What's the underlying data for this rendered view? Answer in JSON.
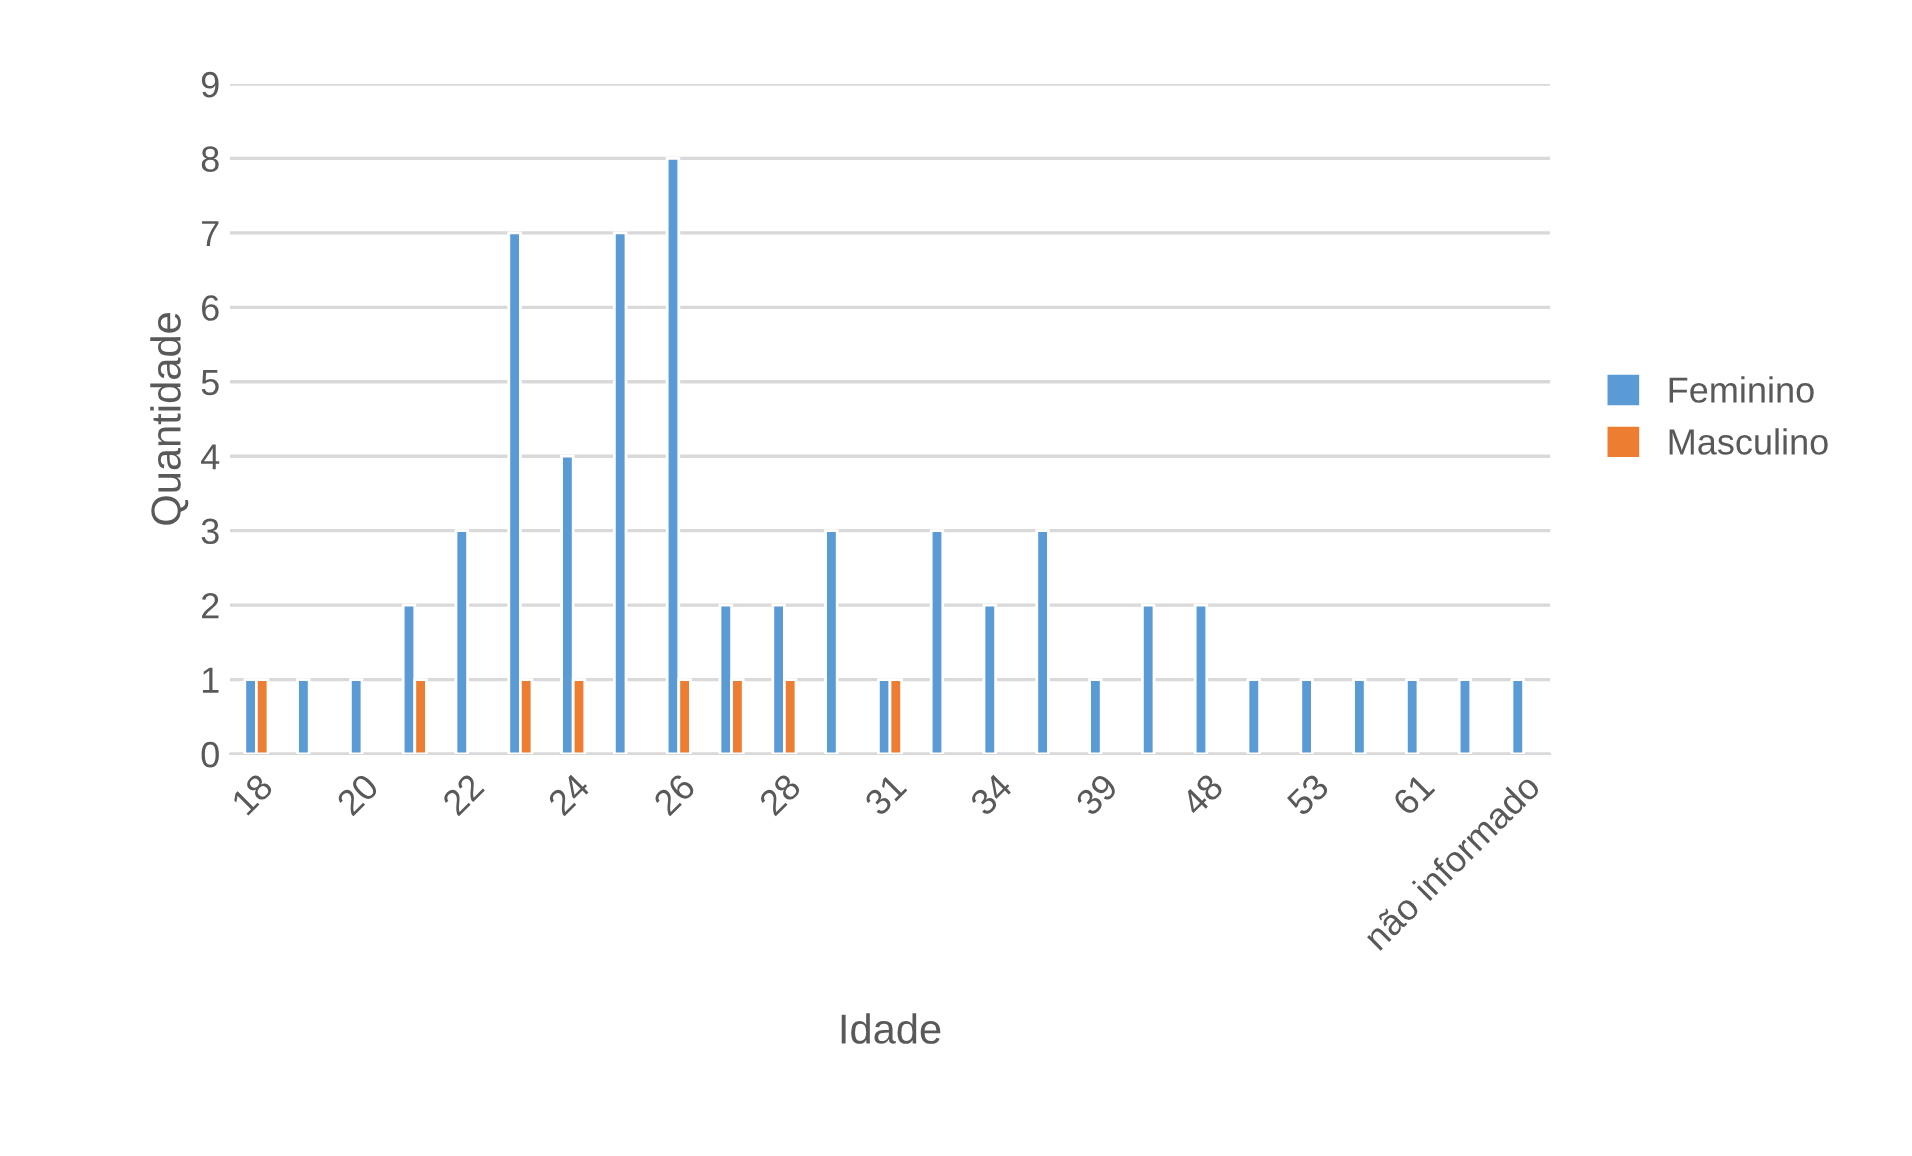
{
  "chart_data": {
    "type": "bar",
    "xlabel": "Idade",
    "ylabel": "Quantidade",
    "categories": [
      "18",
      null,
      "20",
      null,
      "22",
      null,
      "24",
      null,
      "26",
      null,
      "28",
      null,
      "31",
      null,
      "34",
      null,
      "39",
      null,
      "48",
      null,
      "53",
      null,
      "61",
      null,
      "não informado"
    ],
    "series": [
      {
        "name": "Feminino",
        "color": "#5b9bd5",
        "values": [
          1,
          1,
          1,
          2,
          3,
          7,
          4,
          7,
          8,
          2,
          2,
          3,
          1,
          3,
          2,
          3,
          1,
          2,
          2,
          1,
          1,
          1,
          1,
          1,
          1
        ]
      },
      {
        "name": "Masculino",
        "color": "#ed7d31",
        "values": [
          1,
          null,
          null,
          1,
          null,
          1,
          1,
          null,
          1,
          1,
          1,
          null,
          1,
          null,
          null,
          null,
          null,
          null,
          null,
          null,
          null,
          null,
          null,
          null,
          null
        ]
      }
    ],
    "ylim": [
      0,
      9
    ],
    "yticks": [
      0,
      1,
      2,
      3,
      4,
      5,
      6,
      7,
      8,
      9
    ],
    "grid": "y",
    "legend": "right"
  }
}
